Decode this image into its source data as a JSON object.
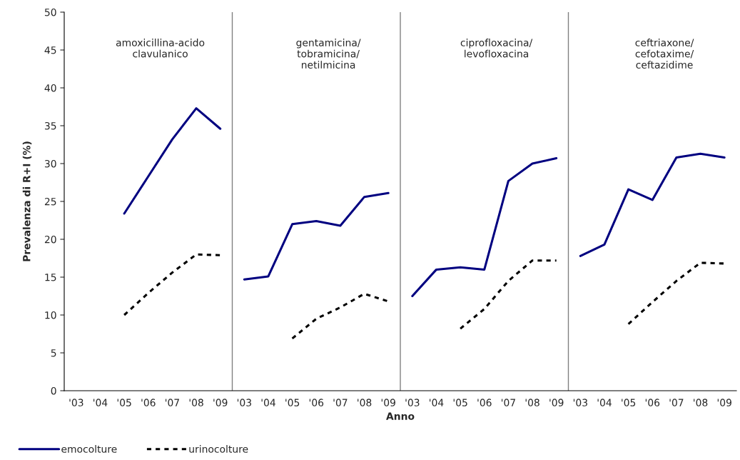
{
  "chart_data": {
    "type": "line",
    "xlabel": "Anno",
    "ylabel": "Prevalenza di R+I (%)",
    "categories": [
      "'03",
      "'04",
      "'05",
      "'06",
      "'07",
      "'08",
      "'09",
      "'03",
      "'04",
      "'05",
      "'06",
      "'07",
      "'08",
      "'09",
      "'03",
      "'04",
      "'05",
      "'06",
      "'07",
      "'08",
      "'09",
      "'03",
      "'04",
      "'05",
      "'06",
      "'07",
      "'08",
      "'09"
    ],
    "series": [
      {
        "name": "emocolture",
        "color": "#000080",
        "line_style": "solid",
        "values": [
          null,
          null,
          23.4,
          28.3,
          33.2,
          37.3,
          34.6,
          14.7,
          15.1,
          22.0,
          22.4,
          21.8,
          25.6,
          26.1,
          12.5,
          16.0,
          16.3,
          16.0,
          27.7,
          30.0,
          30.7,
          17.8,
          19.3,
          26.6,
          25.2,
          30.8,
          31.3,
          30.8
        ]
      },
      {
        "name": "urinocolture",
        "color": "#000000",
        "line_style": "dashed",
        "values": [
          null,
          null,
          10.0,
          12.9,
          15.6,
          18.0,
          17.9,
          null,
          null,
          6.9,
          9.5,
          11.0,
          12.8,
          11.8,
          null,
          null,
          8.2,
          10.8,
          14.5,
          17.2,
          17.2,
          null,
          null,
          8.8,
          11.7,
          14.5,
          16.9,
          16.8
        ]
      }
    ],
    "ylim": [
      0,
      50
    ],
    "yticks": [
      0,
      5,
      10,
      15,
      20,
      25,
      30,
      35,
      40,
      45,
      50
    ],
    "annotations": [
      "amoxicillina-acido\nclavulanico",
      "gentamicina/\ntobramicina/\nnetilmicina",
      "ciprofloxacina/\nlevofloxacina",
      "ceftriaxone/\ncefotaxime/\nceftazidime"
    ],
    "grid": false,
    "legend": "bottom left",
    "marker": "none"
  }
}
